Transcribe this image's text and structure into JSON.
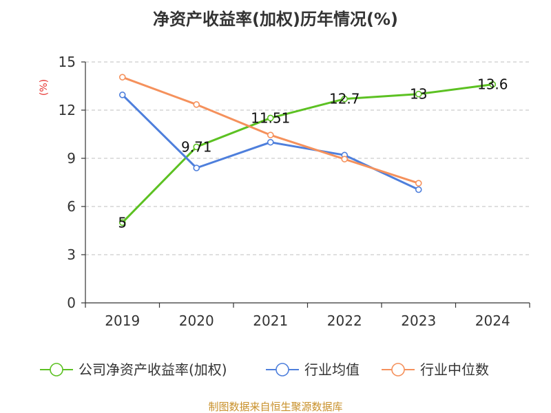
{
  "chart_data": {
    "type": "line",
    "title": "净资产收益率(加权)历年情况(%)",
    "ylabel": "(%)",
    "categories": [
      "2019",
      "2020",
      "2021",
      "2022",
      "2023",
      "2024"
    ],
    "ylim": [
      0,
      15
    ],
    "yticks": [
      0,
      3,
      6,
      9,
      12,
      15
    ],
    "grid": true,
    "legend_position": "bottom",
    "series": [
      {
        "name": "公司净资产收益率(加权)",
        "color": "#5cc122",
        "values": [
          5,
          9.71,
          11.51,
          12.7,
          13,
          13.6
        ],
        "labels": [
          "5",
          "9.71",
          "11.51",
          "12.7",
          "13",
          "13.6"
        ],
        "show_labels": true
      },
      {
        "name": "行业均值",
        "color": "#4e7fdc",
        "values": [
          12.95,
          8.4,
          10.0,
          9.2,
          7.05,
          null
        ],
        "show_labels": false
      },
      {
        "name": "行业中位数",
        "color": "#f5915c",
        "values": [
          14.05,
          12.35,
          10.45,
          8.95,
          7.45,
          null
        ],
        "show_labels": false
      }
    ],
    "source": "制图数据来自恒生聚源数据库"
  }
}
